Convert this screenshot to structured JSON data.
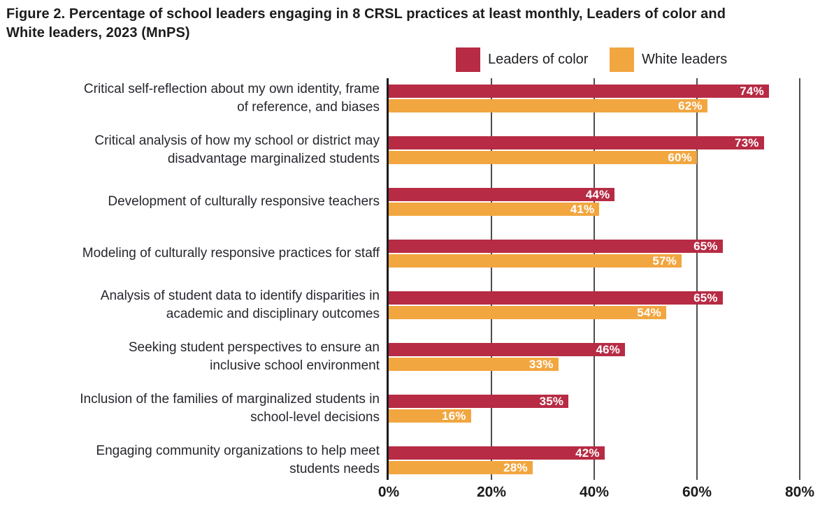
{
  "title": "Figure 2. Percentage of school leaders engaging in 8 CRSL practices at least monthly, Leaders of color and\nWhite leaders, 2023 (MnPS)",
  "legend": [
    {
      "label": "Leaders of color",
      "color": "#b72b44"
    },
    {
      "label": "White leaders",
      "color": "#f2a640"
    }
  ],
  "chart_data": {
    "type": "bar",
    "orientation": "horizontal",
    "title": "Figure 2. Percentage of school leaders engaging in 8 CRSL practices at least monthly, Leaders of color and White leaders, 2023 (MnPS)",
    "categories": [
      "Critical self-reflection about my own identity, frame\nof reference, and biases",
      "Critical analysis of how my school or district may\ndisadvantage marginalized students",
      "Development of culturally responsive teachers",
      "Modeling of culturally responsive practices for staff",
      "Analysis of student data to identify disparities in\nacademic and disciplinary outcomes",
      "Seeking student perspectives to ensure an\ninclusive school environment",
      "Inclusion of the families of marginalized students in\nschool-level decisions",
      "Engaging community organizations to help meet\nstudents needs"
    ],
    "series": [
      {
        "name": "Leaders of color",
        "color": "#b72b44",
        "values": [
          74,
          73,
          44,
          65,
          65,
          46,
          35,
          42
        ]
      },
      {
        "name": "White leaders",
        "color": "#f2a640",
        "values": [
          62,
          60,
          41,
          57,
          54,
          33,
          16,
          28
        ]
      }
    ],
    "value_suffix": "%",
    "xlim": [
      0,
      80
    ],
    "x_ticks": [
      "0%",
      "20%",
      "40%",
      "60%",
      "80%"
    ],
    "grid": true,
    "gridline_color": "#4d4d4d",
    "axis_line_color": "#1c1c1c",
    "value_label_color": "#ffffff",
    "legend_position": "top"
  }
}
